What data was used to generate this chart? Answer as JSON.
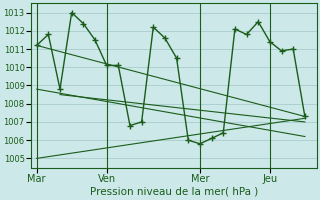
{
  "xlabel": "Pression niveau de la mer( hPa )",
  "bg_color": "#cce8e8",
  "grid_color": "#aacccc",
  "line_color": "#1a5c1a",
  "tick_label_color": "#1a5c1a",
  "axis_label_color": "#1a5c1a",
  "ylim": [
    1004.5,
    1013.5
  ],
  "yticks": [
    1005,
    1006,
    1007,
    1008,
    1009,
    1010,
    1011,
    1012,
    1013
  ],
  "day_labels": [
    "Mar",
    "Ven",
    "Mer",
    "Jeu"
  ],
  "day_positions": [
    0,
    36,
    84,
    120
  ],
  "xlim": [
    -3,
    144
  ],
  "series1_x": [
    0,
    6,
    12,
    18,
    24,
    30,
    36,
    42,
    48,
    54,
    60,
    66,
    72,
    78,
    84,
    90,
    96,
    102,
    108,
    114,
    120,
    126,
    132,
    138
  ],
  "series1_y": [
    1011.2,
    1011.8,
    1008.8,
    1013.0,
    1012.4,
    1011.5,
    1010.1,
    1010.1,
    1006.8,
    1007.0,
    1012.2,
    1011.6,
    1010.5,
    1006.0,
    1005.8,
    1006.1,
    1006.4,
    1012.1,
    1011.8,
    1012.5,
    1011.4,
    1010.9,
    1011.0,
    1007.3
  ],
  "trend1_x": [
    0,
    138
  ],
  "trend1_y": [
    1011.2,
    1007.3
  ],
  "trend2_x": [
    0,
    138
  ],
  "trend2_y": [
    1008.8,
    1006.2
  ],
  "trend3_x": [
    12,
    138
  ],
  "trend3_y": [
    1008.5,
    1007.0
  ],
  "trend4_x": [
    0,
    138
  ],
  "trend4_y": [
    1005.0,
    1007.2
  ]
}
